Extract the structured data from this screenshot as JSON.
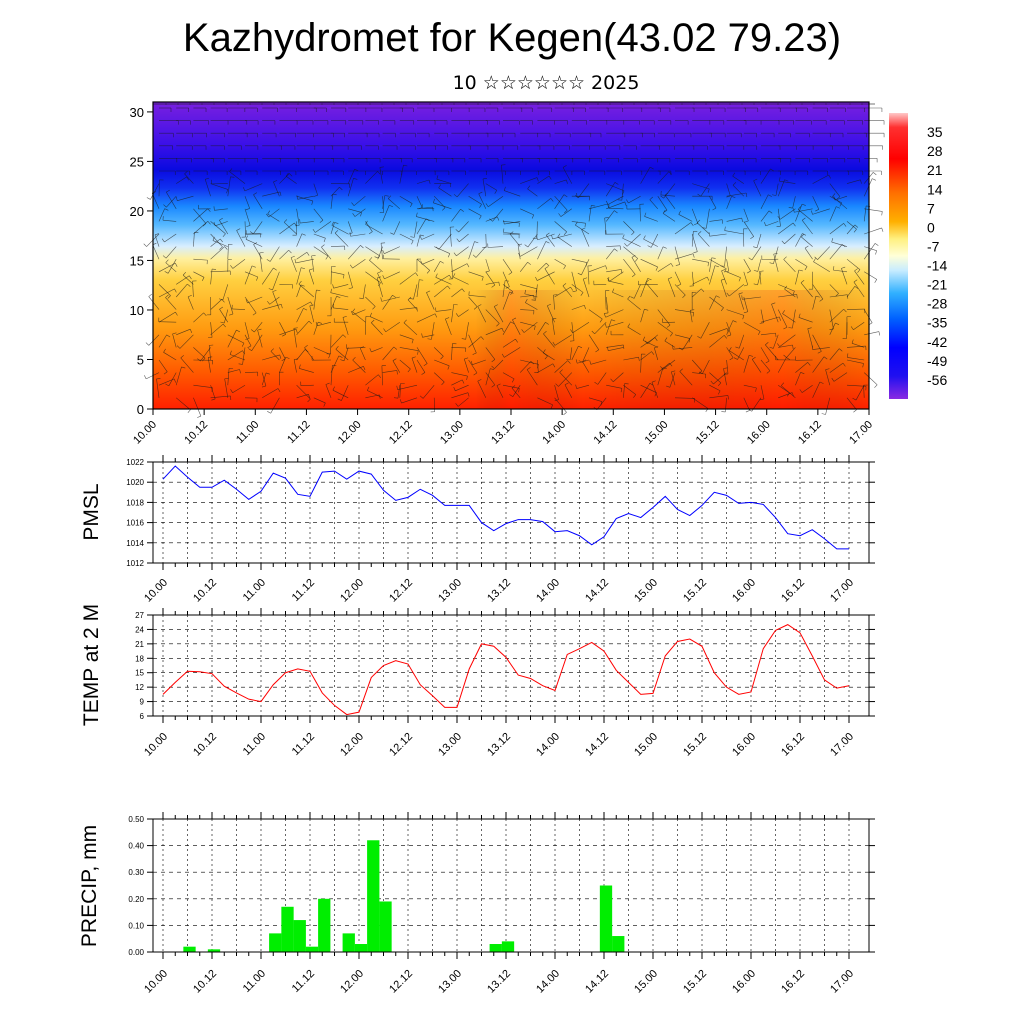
{
  "title": "Kazhydromet for Kegen(43.02 79.23)",
  "subtitle": "10 ☆☆☆☆☆☆ 2025",
  "time_labels": [
    "10.00",
    "10.12",
    "11.00",
    "11.12",
    "12.00",
    "12.12",
    "13.00",
    "13.12",
    "14.00",
    "14.12",
    "15.00",
    "15.12",
    "16.00",
    "16.12",
    "17.00"
  ],
  "colors": {
    "pmsl_line": "#0000ff",
    "temp_line": "#ff0000",
    "precip_bar": "#00ee00"
  },
  "chart_data": [
    {
      "type": "heatmap",
      "name": "temperature-wind-cross-section",
      "y_ticks": [
        "0",
        "5",
        "10",
        "15",
        "20",
        "25",
        "30"
      ],
      "ylim": [
        0,
        31
      ],
      "colorbar_labels": [
        "35",
        "28",
        "21",
        "14",
        "7",
        "0",
        "-7",
        "-14",
        "-21",
        "-28",
        "-35",
        "-42",
        "-49",
        "-56"
      ],
      "colorbar_range": [
        -63,
        42
      ]
    },
    {
      "type": "line",
      "ylabel": "PMSL",
      "y_ticks": [
        "1012",
        "1014",
        "1016",
        "1018",
        "1020",
        "1022"
      ],
      "ylim": [
        1012,
        1022
      ],
      "x": [
        0,
        3,
        6,
        9,
        12,
        15,
        18,
        21,
        24,
        27,
        30,
        33,
        36,
        39,
        42,
        45,
        48,
        51,
        54,
        57,
        60,
        63,
        66,
        69,
        72,
        75,
        78,
        81,
        84,
        87,
        90,
        93,
        96,
        99,
        102,
        105,
        108,
        111,
        114,
        117,
        120,
        123,
        126,
        129,
        132,
        135,
        138,
        141,
        144,
        147,
        150,
        153,
        156,
        159,
        162,
        165,
        168
      ],
      "values": [
        1020.3,
        1021.6,
        1020.5,
        1019.5,
        1019.5,
        1020.2,
        1019.3,
        1018.3,
        1019.1,
        1020.9,
        1020.4,
        1018.8,
        1018.6,
        1021.0,
        1021.1,
        1020.3,
        1021.1,
        1020.8,
        1019.2,
        1018.2,
        1018.5,
        1019.3,
        1018.7,
        1017.7,
        1017.7,
        1017.7,
        1016.0,
        1015.2,
        1015.9,
        1016.3,
        1016.3,
        1016.1,
        1015.1,
        1015.2,
        1014.7,
        1013.8,
        1014.6,
        1016.4,
        1016.9,
        1016.5,
        1017.5,
        1018.6,
        1017.3,
        1016.7,
        1017.7,
        1019.0,
        1018.7,
        1017.9,
        1018.0,
        1017.8,
        1016.5,
        1014.9,
        1014.7,
        1015.3,
        1014.4,
        1013.4,
        1013.4
      ]
    },
    {
      "type": "line",
      "ylabel": "TEMP at 2 M",
      "y_ticks": [
        "6",
        "9",
        "12",
        "15",
        "18",
        "21",
        "24",
        "27"
      ],
      "ylim": [
        6,
        27
      ],
      "x": [
        0,
        3,
        6,
        9,
        12,
        15,
        18,
        21,
        24,
        27,
        30,
        33,
        36,
        39,
        42,
        45,
        48,
        51,
        54,
        57,
        60,
        63,
        66,
        69,
        72,
        75,
        78,
        81,
        84,
        87,
        90,
        93,
        96,
        99,
        102,
        105,
        108,
        111,
        114,
        117,
        120,
        123,
        126,
        129,
        132,
        135,
        138,
        141,
        144,
        147,
        150,
        153,
        156,
        159,
        162,
        165,
        168
      ],
      "values": [
        10.5,
        13.0,
        15.3,
        15.2,
        14.8,
        12.2,
        10.8,
        9.5,
        9.0,
        12.5,
        15.0,
        15.8,
        15.3,
        10.8,
        8.2,
        6.3,
        6.8,
        14.0,
        16.5,
        17.5,
        16.8,
        12.5,
        10.2,
        7.8,
        7.8,
        15.8,
        21.0,
        20.5,
        18.2,
        14.5,
        13.8,
        12.3,
        11.3,
        18.8,
        20.0,
        21.3,
        19.5,
        15.5,
        13.0,
        10.5,
        10.7,
        18.5,
        21.5,
        22.0,
        20.5,
        15.0,
        12.0,
        10.5,
        11.0,
        20.0,
        23.8,
        25.0,
        23.3,
        18.5,
        13.5,
        11.8,
        12.3
      ]
    },
    {
      "type": "bar",
      "ylabel": "PRECIP, mm",
      "y_ticks": [
        "0.00",
        "0.10",
        "0.20",
        "0.30",
        "0.40",
        "0.50"
      ],
      "ylim": [
        0,
        0.5
      ],
      "bars": [
        {
          "x": 6,
          "value": 0.02
        },
        {
          "x": 12,
          "value": 0.01
        },
        {
          "x": 27,
          "value": 0.07
        },
        {
          "x": 30,
          "value": 0.17
        },
        {
          "x": 33,
          "value": 0.12
        },
        {
          "x": 36,
          "value": 0.02
        },
        {
          "x": 39,
          "value": 0.2
        },
        {
          "x": 45,
          "value": 0.07
        },
        {
          "x": 48,
          "value": 0.03
        },
        {
          "x": 51,
          "value": 0.42
        },
        {
          "x": 54,
          "value": 0.19
        },
        {
          "x": 81,
          "value": 0.03
        },
        {
          "x": 84,
          "value": 0.04
        },
        {
          "x": 108,
          "value": 0.25
        },
        {
          "x": 111,
          "value": 0.06
        }
      ]
    }
  ]
}
